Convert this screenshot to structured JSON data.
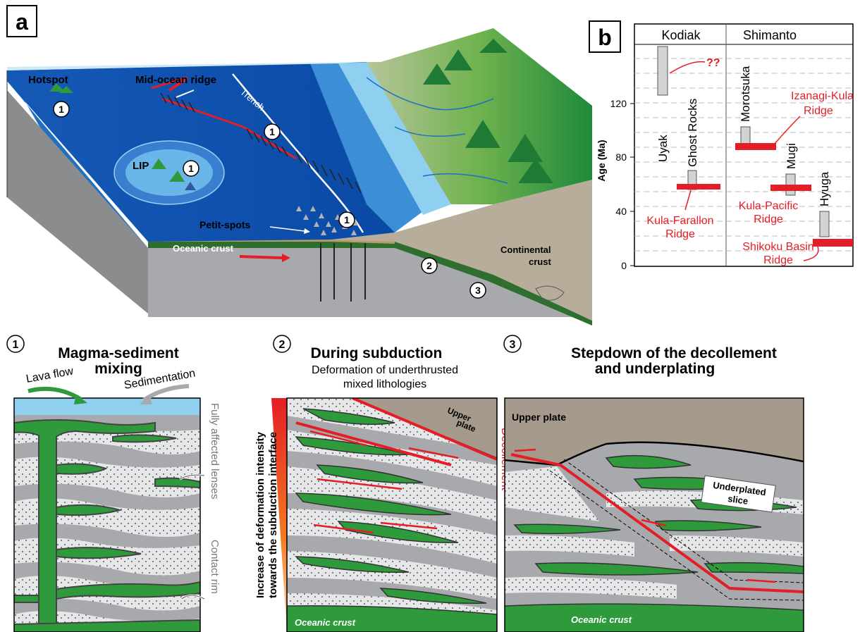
{
  "panel_a": {
    "letter": "a",
    "labels": {
      "hotspot": "Hotspot",
      "mor": "Mid-ocean ridge",
      "trench": "Trench",
      "lip": "LIP",
      "petit_spots": "Petit-spots",
      "oceanic_crust": "Oceanic crust",
      "continental_crust_1": "Continental",
      "continental_crust_2": "crust"
    },
    "markers": [
      "1",
      "1",
      "1",
      "1",
      "1",
      "2",
      "3"
    ]
  },
  "panel_b": {
    "letter": "b",
    "headers": [
      "Kodiak",
      "Shimanto"
    ],
    "ylabel": "Age (Ma)",
    "ticks": [
      "0",
      "40",
      "80",
      "120"
    ],
    "units": {
      "uyak": "Uyak",
      "ghost_rocks": "Ghost Rocks",
      "morotsuka": "Morotsuka",
      "mugi": "Mugi",
      "hyuga": "Hyuga"
    },
    "ridges": {
      "qq": "??",
      "izanagi_1": "Izanagi-Kula",
      "izanagi_2": "Ridge",
      "kula_farallon_1": "Kula-Farallon",
      "kula_farallon_2": "Ridge",
      "kula_pacific_1": "Kula-Pacific",
      "kula_pacific_2": "Ridge",
      "shikoku_1": "Shikoku Basin",
      "shikoku_2": "Ridge"
    }
  },
  "panel_1": {
    "number": "1",
    "title_1": "Magma-sediment",
    "title_2": "mixing",
    "lava_flow": "Lava flow",
    "sedimentation": "Sedimentation",
    "fully_affected": "Fully affected lenses",
    "contact_rim": "Contact rim"
  },
  "panel_2": {
    "number": "2",
    "title": "During subduction",
    "subtitle_1": "Deformation of underthrusted",
    "subtitle_2": "mixed lithologies",
    "axis_1": "Increase of deformation intensity",
    "axis_2": "towards the subduction interface",
    "upper_plate_1": "Upper",
    "upper_plate_2": "plate",
    "decollement": "Decollement",
    "oceanic_crust": "Oceanic crust"
  },
  "panel_3": {
    "number": "3",
    "title_1": "Stepdown of the decollement",
    "title_2": "and underplating",
    "upper_plate": "Upper plate",
    "underplated_1": "Underplated",
    "underplated_2": "slice",
    "oceanic_crust": "Oceanic crust"
  },
  "colors": {
    "ocean_dark": "#0a4aa6",
    "ocean_light": "#8fd0f0",
    "green": "#2e9a3c",
    "red": "#e41e26",
    "grey": "#a7a9ac"
  }
}
